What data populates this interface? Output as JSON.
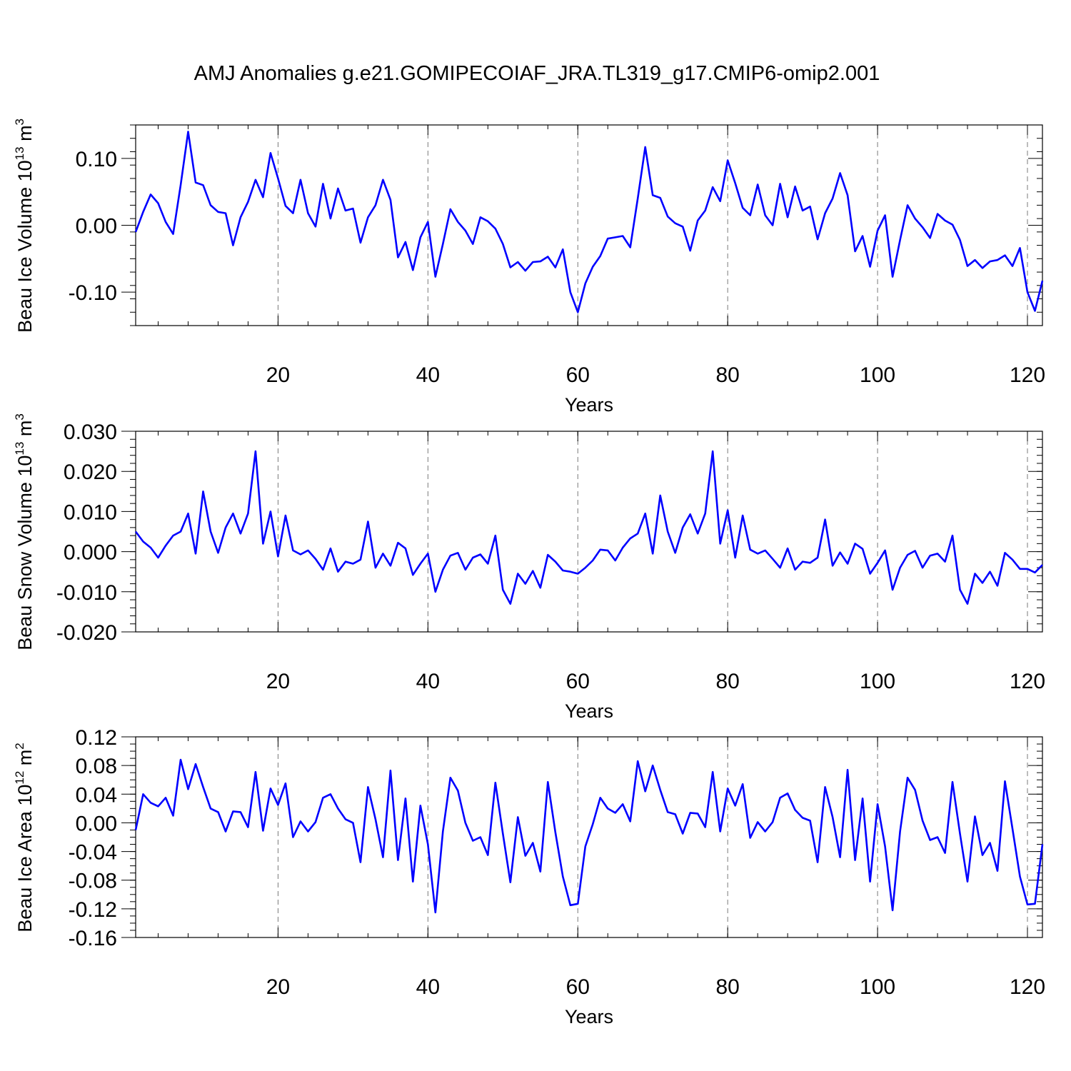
{
  "figure": {
    "title": "AMJ Anomalies g.e21.GOMIPECOIAF_JRA.TL319_g17.CMIP6-omip2.001",
    "line_color": "#0000ff"
  },
  "chart_data": [
    {
      "type": "line",
      "xlabel": "Years",
      "ylabel": "Beau Ice Volume 10",
      "ylabel_exp": "13",
      "ylabel_unit": " m",
      "ylabel_unit_exp": "3",
      "xlim": [
        1,
        122
      ],
      "ylim": [
        -0.15,
        0.15
      ],
      "xticks": [
        20,
        40,
        60,
        80,
        100,
        120
      ],
      "xtick_labels": [
        "20",
        "40",
        "60",
        "80",
        "100",
        "120"
      ],
      "yticks": [
        -0.1,
        0.0,
        0.1
      ],
      "ytick_labels": [
        "-0.10",
        "0.00",
        "0.10"
      ],
      "minor_x_step": 4,
      "minor_y_step": 0.02,
      "grid": "vertical dashed at major x ticks",
      "x_start": 1,
      "x_step": 1,
      "values": [
        -0.01,
        0.02,
        0.046,
        0.033,
        0.005,
        -0.013,
        0.06,
        0.14,
        0.064,
        0.06,
        0.03,
        0.02,
        0.018,
        -0.03,
        0.012,
        0.035,
        0.068,
        0.042,
        0.108,
        0.07,
        0.029,
        0.018,
        0.068,
        0.018,
        -0.002,
        0.062,
        0.01,
        0.055,
        0.022,
        0.025,
        -0.026,
        0.012,
        0.03,
        0.068,
        0.038,
        -0.048,
        -0.025,
        -0.067,
        -0.018,
        0.005,
        -0.077,
        -0.028,
        0.024,
        0.005,
        -0.008,
        -0.028,
        0.012,
        0.006,
        -0.005,
        -0.028,
        -0.063,
        -0.055,
        -0.068,
        -0.055,
        -0.054,
        -0.047,
        -0.063,
        -0.036,
        -0.1,
        -0.13,
        -0.087,
        -0.062,
        -0.046,
        -0.02,
        -0.018,
        -0.016,
        -0.033,
        0.04,
        0.117,
        0.045,
        0.041,
        0.013,
        0.003,
        -0.002,
        -0.038,
        0.007,
        0.022,
        0.057,
        0.036,
        0.097,
        0.063,
        0.026,
        0.015,
        0.061,
        0.015,
        0.0,
        0.062,
        0.012,
        0.058,
        0.022,
        0.028,
        -0.021,
        0.018,
        0.04,
        0.078,
        0.045,
        -0.039,
        -0.016,
        -0.062,
        -0.008,
        0.015,
        -0.077,
        -0.022,
        0.03,
        0.01,
        -0.003,
        -0.019,
        0.017,
        0.007,
        0.001,
        -0.022,
        -0.061,
        -0.052,
        -0.064,
        -0.054,
        -0.052,
        -0.045,
        -0.061,
        -0.034,
        -0.1,
        -0.128,
        -0.083
      ]
    },
    {
      "type": "line",
      "xlabel": "Years",
      "ylabel": "Beau Snow Volume 10",
      "ylabel_exp": "13",
      "ylabel_unit": " m",
      "ylabel_unit_exp": "3",
      "xlim": [
        1,
        122
      ],
      "ylim": [
        -0.02,
        0.03
      ],
      "xticks": [
        20,
        40,
        60,
        80,
        100,
        120
      ],
      "xtick_labels": [
        "20",
        "40",
        "60",
        "80",
        "100",
        "120"
      ],
      "yticks": [
        -0.02,
        -0.01,
        0.0,
        0.01,
        0.02,
        0.03
      ],
      "ytick_labels": [
        "-0.020",
        "-0.010",
        "0.000",
        "0.010",
        "0.020",
        "0.030"
      ],
      "minor_x_step": 4,
      "minor_y_step": 0.002,
      "grid": "vertical dashed at major x ticks",
      "x_start": 1,
      "x_step": 1,
      "values": [
        0.005,
        0.0025,
        0.001,
        -0.0015,
        0.0015,
        0.004,
        0.005,
        0.0095,
        -0.0005,
        0.015,
        0.005,
        -0.0003,
        0.006,
        0.0095,
        0.0045,
        0.0095,
        0.025,
        0.002,
        0.01,
        -0.0012,
        0.009,
        0.0003,
        -0.0007,
        0.0003,
        -0.0018,
        -0.0045,
        0.0008,
        -0.005,
        -0.0025,
        -0.003,
        -0.002,
        0.0075,
        -0.004,
        -0.0005,
        -0.0035,
        0.0022,
        0.0008,
        -0.0058,
        -0.003,
        -0.0005,
        -0.01,
        -0.0045,
        -0.001,
        -0.0003,
        -0.0045,
        -0.0015,
        -0.0007,
        -0.003,
        0.004,
        -0.0095,
        -0.013,
        -0.0055,
        -0.008,
        -0.0048,
        -0.009,
        -0.0008,
        -0.0025,
        -0.0047,
        -0.005,
        -0.0055,
        -0.004,
        -0.0022,
        0.0005,
        0.0003,
        -0.0022,
        0.001,
        0.0033,
        0.0045,
        0.0095,
        -0.0005,
        0.014,
        0.005,
        -0.0003,
        0.006,
        0.0093,
        0.0045,
        0.0095,
        0.025,
        0.002,
        0.0103,
        -0.0015,
        0.009,
        0.0005,
        -0.0005,
        0.0003,
        -0.0018,
        -0.004,
        0.0008,
        -0.0045,
        -0.0025,
        -0.0028,
        -0.0015,
        0.008,
        -0.0035,
        -0.0002,
        -0.003,
        0.002,
        0.0007,
        -0.0055,
        -0.0028,
        0.0003,
        -0.0095,
        -0.004,
        -0.0008,
        0.0002,
        -0.004,
        -0.001,
        -0.0005,
        -0.0025,
        0.004,
        -0.0095,
        -0.013,
        -0.0055,
        -0.0078,
        -0.005,
        -0.0085,
        -0.0003,
        -0.002,
        -0.0043,
        -0.0043,
        -0.0052,
        -0.0033
      ]
    },
    {
      "type": "line",
      "xlabel": "Years",
      "ylabel": "Beau Ice Area 10",
      "ylabel_exp": "12",
      "ylabel_unit": " m",
      "ylabel_unit_exp": "2",
      "xlim": [
        1,
        122
      ],
      "ylim": [
        -0.16,
        0.12
      ],
      "xticks": [
        20,
        40,
        60,
        80,
        100,
        120
      ],
      "xtick_labels": [
        "20",
        "40",
        "60",
        "80",
        "100",
        "120"
      ],
      "yticks": [
        -0.16,
        -0.12,
        -0.08,
        -0.04,
        0.0,
        0.04,
        0.08,
        0.12
      ],
      "ytick_labels": [
        "-0.16",
        "-0.12",
        "-0.08",
        "-0.04",
        "0.00",
        "0.04",
        "0.08",
        "0.12"
      ],
      "minor_x_step": 4,
      "minor_y_step": 0.01,
      "grid": "vertical dashed at major x ticks",
      "x_start": 1,
      "x_step": 1,
      "values": [
        -0.01,
        0.04,
        0.028,
        0.023,
        0.035,
        0.01,
        0.088,
        0.047,
        0.082,
        0.05,
        0.02,
        0.015,
        -0.012,
        0.016,
        0.015,
        -0.006,
        0.071,
        -0.011,
        0.048,
        0.025,
        0.055,
        -0.02,
        0.002,
        -0.012,
        0.001,
        0.035,
        0.04,
        0.02,
        0.005,
        0.0,
        -0.055,
        0.05,
        0.005,
        -0.048,
        0.073,
        -0.052,
        0.034,
        -0.082,
        0.024,
        -0.03,
        -0.125,
        -0.012,
        0.063,
        0.045,
        0.0,
        -0.025,
        -0.02,
        -0.045,
        0.056,
        -0.015,
        -0.083,
        0.008,
        -0.046,
        -0.028,
        -0.068,
        0.057,
        -0.013,
        -0.075,
        -0.115,
        -0.113,
        -0.033,
        -0.002,
        0.035,
        0.02,
        0.014,
        0.026,
        0.002,
        0.086,
        0.044,
        0.08,
        0.046,
        0.015,
        0.012,
        -0.015,
        0.014,
        0.013,
        -0.006,
        0.071,
        -0.012,
        0.048,
        0.024,
        0.054,
        -0.021,
        0.001,
        -0.012,
        0.001,
        0.035,
        0.041,
        0.018,
        0.007,
        0.003,
        -0.055,
        0.05,
        0.008,
        -0.048,
        0.074,
        -0.052,
        0.034,
        -0.082,
        0.026,
        -0.033,
        -0.122,
        -0.012,
        0.063,
        0.046,
        0.003,
        -0.024,
        -0.02,
        -0.042,
        0.057,
        -0.015,
        -0.082,
        0.009,
        -0.045,
        -0.028,
        -0.067,
        0.058,
        -0.008,
        -0.075,
        -0.114,
        -0.113,
        -0.03
      ]
    }
  ]
}
